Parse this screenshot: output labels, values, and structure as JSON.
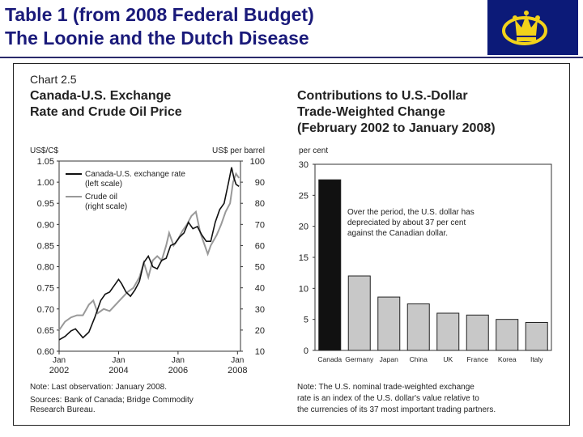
{
  "slide": {
    "title_line1": "Table 1 (from 2008 Federal Budget)",
    "title_line2": "The Loonie and the Dutch Disease"
  },
  "colors": {
    "title": "#1a1a7a",
    "logo_bg": "#0c1a78",
    "logo_gold": "#f2d21a",
    "canada_bar": "#111111",
    "other_bars": "#c8c8c8",
    "exchange_line": "#111111",
    "oil_line": "#999999"
  },
  "chart_data": [
    {
      "type": "line",
      "label": "Chart 2.5",
      "title": "Canada-U.S. Exchange Rate and Crude Oil Price",
      "left_axis_unit": "US$/C$",
      "right_axis_unit": "US$ per barrel",
      "left_ticks": [
        "1.05",
        "1.00",
        "0.95",
        "0.90",
        "0.85",
        "0.80",
        "0.75",
        "0.70",
        "0.65",
        "0.60"
      ],
      "right_ticks": [
        "100",
        "90",
        "80",
        "70",
        "60",
        "50",
        "40",
        "30",
        "20",
        "10"
      ],
      "ylim_left": [
        0.6,
        1.05
      ],
      "ylim_right": [
        10,
        100
      ],
      "x_ticks": [
        [
          "Jan",
          "2002"
        ],
        [
          "Jan",
          "2004"
        ],
        [
          "Jan",
          "2006"
        ],
        [
          "Jan",
          "2008"
        ]
      ],
      "xlim": [
        2002.0,
        2008.1
      ],
      "legend": "top-left",
      "series": [
        {
          "name": "Canada-U.S. exchange rate",
          "scale_note": "(left scale)",
          "axis": "left",
          "points": [
            [
              2002.0,
              0.627
            ],
            [
              2002.2,
              0.635
            ],
            [
              2002.4,
              0.648
            ],
            [
              2002.55,
              0.653
            ],
            [
              2002.8,
              0.632
            ],
            [
              2003.0,
              0.645
            ],
            [
              2003.2,
              0.68
            ],
            [
              2003.4,
              0.72
            ],
            [
              2003.55,
              0.735
            ],
            [
              2003.7,
              0.74
            ],
            [
              2003.85,
              0.755
            ],
            [
              2004.0,
              0.77
            ],
            [
              2004.1,
              0.76
            ],
            [
              2004.25,
              0.74
            ],
            [
              2004.4,
              0.73
            ],
            [
              2004.55,
              0.745
            ],
            [
              2004.7,
              0.765
            ],
            [
              2004.85,
              0.81
            ],
            [
              2005.0,
              0.825
            ],
            [
              2005.15,
              0.8
            ],
            [
              2005.3,
              0.795
            ],
            [
              2005.45,
              0.815
            ],
            [
              2005.6,
              0.82
            ],
            [
              2005.75,
              0.85
            ],
            [
              2005.9,
              0.855
            ],
            [
              2006.05,
              0.87
            ],
            [
              2006.2,
              0.88
            ],
            [
              2006.35,
              0.905
            ],
            [
              2006.5,
              0.89
            ],
            [
              2006.65,
              0.895
            ],
            [
              2006.8,
              0.875
            ],
            [
              2006.95,
              0.86
            ],
            [
              2007.1,
              0.86
            ],
            [
              2007.25,
              0.905
            ],
            [
              2007.4,
              0.935
            ],
            [
              2007.55,
              0.95
            ],
            [
              2007.7,
              1.0
            ],
            [
              2007.8,
              1.035
            ],
            [
              2007.88,
              1.01
            ],
            [
              2007.95,
              0.995
            ],
            [
              2008.05,
              0.99
            ]
          ]
        },
        {
          "name": "Crude oil",
          "scale_note": "(right scale)",
          "axis": "right",
          "points": [
            [
              2002.0,
              20
            ],
            [
              2002.2,
              24
            ],
            [
              2002.4,
              26
            ],
            [
              2002.6,
              27
            ],
            [
              2002.8,
              27
            ],
            [
              2003.0,
              32
            ],
            [
              2003.15,
              34
            ],
            [
              2003.3,
              28
            ],
            [
              2003.5,
              30
            ],
            [
              2003.7,
              29
            ],
            [
              2003.9,
              32
            ],
            [
              2004.1,
              35
            ],
            [
              2004.3,
              38
            ],
            [
              2004.5,
              40
            ],
            [
              2004.7,
              45
            ],
            [
              2004.85,
              52
            ],
            [
              2005.0,
              45
            ],
            [
              2005.15,
              53
            ],
            [
              2005.3,
              55
            ],
            [
              2005.45,
              53
            ],
            [
              2005.6,
              60
            ],
            [
              2005.7,
              66
            ],
            [
              2005.85,
              60
            ],
            [
              2006.0,
              63
            ],
            [
              2006.15,
              67
            ],
            [
              2006.3,
              70
            ],
            [
              2006.45,
              74
            ],
            [
              2006.6,
              76
            ],
            [
              2006.75,
              66
            ],
            [
              2006.9,
              60
            ],
            [
              2007.0,
              56
            ],
            [
              2007.1,
              60
            ],
            [
              2007.3,
              65
            ],
            [
              2007.45,
              70
            ],
            [
              2007.6,
              76
            ],
            [
              2007.75,
              80
            ],
            [
              2007.85,
              90
            ],
            [
              2007.95,
              94
            ],
            [
              2008.05,
              92
            ]
          ]
        }
      ],
      "notes": [
        "Note: Last observation: January 2008.",
        "Sources: Bank of Canada; Bridge Commodity",
        "Research Bureau."
      ]
    },
    {
      "type": "bar",
      "title_lines": [
        "Contributions to U.S.-Dollar",
        "Trade-Weighted Change",
        "(February 2002 to January 2008)"
      ],
      "ylabel": "per cent",
      "ylim": [
        0,
        30
      ],
      "y_ticks": [
        "30",
        "25",
        "20",
        "15",
        "10",
        "5",
        "0"
      ],
      "categories": [
        "Canada",
        "Germany",
        "Japan",
        "China",
        "UK",
        "France",
        "Korea",
        "Italy"
      ],
      "values": [
        27.5,
        12.0,
        8.6,
        7.5,
        6.0,
        5.7,
        5.0,
        4.5
      ],
      "annotation": [
        "Over the period, the U.S. dollar has",
        "depreciated by about 37 per cent",
        "against the Canadian dollar."
      ],
      "notes": [
        "Note: The U.S. nominal trade-weighted exchange",
        "rate is an index of the U.S. dollar's value relative to",
        "the currencies of its 37 most important trading partners."
      ]
    }
  ]
}
